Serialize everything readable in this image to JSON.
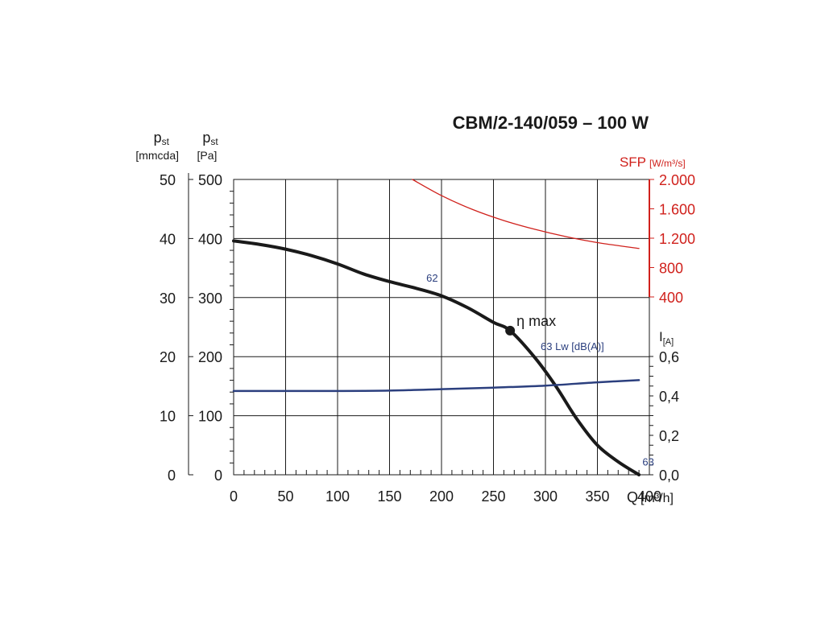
{
  "chart_data": {
    "type": "line",
    "title": "CBM/2-140/059 – 100 W",
    "x_axis": {
      "label": "Q",
      "unit": "[m³/h]",
      "range": [
        0,
        400
      ],
      "ticks": [
        0,
        50,
        100,
        150,
        200,
        250,
        300,
        350,
        400
      ],
      "tick_labels": [
        "0",
        "50",
        "100",
        "150",
        "200",
        "250",
        "300",
        "350",
        "400"
      ]
    },
    "y_axis_pa": {
      "label": "pst",
      "unit": "[Pa]",
      "range": [
        0,
        500
      ],
      "ticks": [
        0,
        100,
        200,
        300,
        400,
        500
      ],
      "tick_labels": [
        "0",
        "100",
        "200",
        "300",
        "400",
        "500"
      ]
    },
    "y_axis_mmcda": {
      "label": "pst",
      "unit": "[mmcda]",
      "range": [
        0,
        50
      ],
      "ticks": [
        0,
        10,
        20,
        30,
        40,
        50
      ],
      "tick_labels": [
        "0",
        "10",
        "20",
        "30",
        "40",
        "50"
      ]
    },
    "y_axis_sfp": {
      "label": "SFP",
      "unit": "[W/m³/s]",
      "range": [
        400,
        2000
      ],
      "ticks": [
        400,
        800,
        1200,
        1600,
        2000
      ],
      "tick_labels": [
        "400",
        "800",
        "1.200",
        "1.600",
        "2.000"
      ],
      "color": "#d0211c"
    },
    "y_axis_current": {
      "label": "I",
      "unit": "[A]",
      "range": [
        0,
        0.6
      ],
      "ticks": [
        0,
        0.2,
        0.4,
        0.6
      ],
      "tick_labels": [
        "0,0",
        "0,2",
        "0,4",
        "0,6"
      ]
    },
    "series": [
      {
        "name": "pressure",
        "axis": "pa",
        "color": "#1a1a1a",
        "x": [
          0,
          25,
          50,
          75,
          100,
          125,
          150,
          175,
          200,
          225,
          250,
          266,
          290,
          310,
          330,
          350,
          370,
          390
        ],
        "y": [
          396,
          390,
          382,
          371,
          357,
          340,
          327,
          316,
          303,
          283,
          258,
          244,
          198,
          150,
          95,
          50,
          22,
          0
        ]
      },
      {
        "name": "current",
        "axis": "current",
        "color": "#2b3f7e",
        "x": [
          0,
          50,
          100,
          150,
          200,
          250,
          300,
          350,
          390
        ],
        "y": [
          0.425,
          0.425,
          0.425,
          0.427,
          0.434,
          0.442,
          0.452,
          0.469,
          0.48
        ]
      },
      {
        "name": "SFP",
        "axis": "sfp",
        "color": "#d0211c",
        "x": [
          172,
          200,
          230,
          260,
          290,
          320,
          350,
          390
        ],
        "y": [
          2000,
          1780,
          1590,
          1440,
          1320,
          1220,
          1140,
          1060
        ]
      }
    ],
    "annotations": {
      "eta_max": {
        "x": 266,
        "y": 244,
        "label": "η max"
      },
      "noise_levels": [
        {
          "text": "62",
          "x": 190,
          "y": 327
        },
        {
          "text": "63 Lw [dB(A)]",
          "x": 300,
          "y": 211
        },
        {
          "text": "63",
          "x": 398,
          "y": 16
        }
      ]
    },
    "grid": true
  }
}
